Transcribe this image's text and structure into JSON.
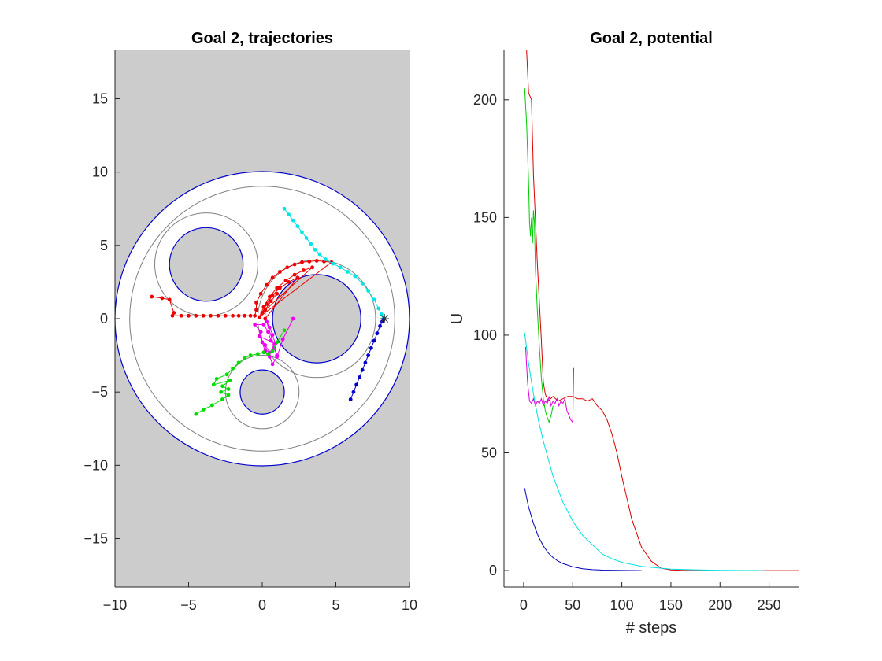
{
  "figure": {
    "left_title": "Goal 2, trajectories",
    "right_title": "Goal 2, potential"
  },
  "chart_data": [
    {
      "type": "scatter",
      "title": "Goal 2, trajectories",
      "xlabel": "",
      "ylabel": "",
      "xlim": [
        -10,
        10
      ],
      "ylim": [
        -18.3,
        18.3
      ],
      "xticks": [
        -10,
        -5,
        0,
        5,
        10
      ],
      "yticks": [
        -15,
        -10,
        -5,
        0,
        5,
        10,
        15
      ],
      "grid": false,
      "colors": {
        "background": "#cccccc",
        "free_space": "#ffffff",
        "obstacle_edge": "#0000cc",
        "inflated_edge": "#808080"
      },
      "workspace": {
        "center": [
          0,
          0
        ],
        "radius": 10,
        "inner_ring": 9
      },
      "obstacles": [
        {
          "center": [
            -3.8,
            3.7
          ],
          "radius": 2.5,
          "ring": 3.5
        },
        {
          "center": [
            3.7,
            0
          ],
          "radius": 3.0,
          "ring": 4.0
        },
        {
          "center": [
            0,
            -5.0
          ],
          "radius": 1.5,
          "ring": 2.5
        }
      ],
      "goal": [
        8.3,
        0
      ],
      "series": [
        {
          "name": "red",
          "color": "#ee0000",
          "points": [
            [
              -7.5,
              1.5
            ],
            [
              -6.8,
              1.4
            ],
            [
              -6.3,
              1.3
            ],
            [
              -6.0,
              0.4
            ],
            [
              -6.1,
              0.2
            ],
            [
              -5.5,
              0.2
            ],
            [
              -5.0,
              0.2
            ],
            [
              -4.5,
              0.2
            ],
            [
              -4.0,
              0.2
            ],
            [
              -3.5,
              0.2
            ],
            [
              -3.0,
              0.2
            ],
            [
              -2.5,
              0.2
            ],
            [
              -2.0,
              0.2
            ],
            [
              -1.6,
              0.2
            ],
            [
              -1.2,
              0.2
            ],
            [
              -0.8,
              0.2
            ],
            [
              -0.5,
              0.2
            ],
            [
              -0.4,
              0.6
            ],
            [
              -0.4,
              1.1
            ],
            [
              -0.1,
              1.7
            ],
            [
              0.3,
              2.3
            ],
            [
              0.7,
              2.8
            ],
            [
              1.2,
              3.2
            ],
            [
              1.7,
              3.5
            ],
            [
              2.2,
              3.7
            ],
            [
              2.7,
              3.85
            ],
            [
              3.2,
              3.9
            ],
            [
              3.7,
              3.95
            ],
            [
              4.2,
              3.9
            ],
            [
              4.7,
              3.85
            ],
            [
              -0.2,
              0.1
            ],
            [
              0.1,
              0.8
            ],
            [
              0.5,
              1.5
            ],
            [
              1.0,
              2.1
            ],
            [
              1.6,
              2.6
            ],
            [
              2.2,
              3.0
            ],
            [
              2.8,
              3.3
            ],
            [
              3.4,
              3.5
            ],
            [
              0.0,
              0.4
            ],
            [
              0.3,
              1.0
            ],
            [
              0.7,
              1.6
            ],
            [
              1.2,
              2.1
            ],
            [
              1.8,
              2.5
            ],
            [
              2.4,
              2.8
            ],
            [
              0.2,
              0.0
            ],
            [
              0.2,
              0.6
            ],
            [
              0.6,
              1.2
            ],
            [
              1.0,
              1.7
            ]
          ]
        },
        {
          "name": "cyan",
          "color": "#00e5e5",
          "points": [
            [
              1.5,
              7.5
            ],
            [
              1.8,
              7.1
            ],
            [
              2.1,
              6.7
            ],
            [
              2.4,
              6.3
            ],
            [
              2.7,
              5.9
            ],
            [
              3.0,
              5.5
            ],
            [
              3.3,
              5.1
            ],
            [
              3.6,
              4.7
            ],
            [
              3.9,
              4.4
            ],
            [
              4.3,
              4.05
            ],
            [
              4.8,
              3.75
            ],
            [
              5.3,
              3.5
            ],
            [
              5.8,
              3.2
            ],
            [
              6.3,
              2.9
            ],
            [
              6.8,
              2.4
            ],
            [
              7.2,
              1.9
            ],
            [
              7.6,
              1.3
            ],
            [
              7.9,
              0.7
            ],
            [
              8.1,
              0.3
            ],
            [
              8.25,
              0.05
            ]
          ]
        },
        {
          "name": "blue",
          "color": "#0000cc",
          "points": [
            [
              6.0,
              -5.5
            ],
            [
              6.2,
              -5.0
            ],
            [
              6.4,
              -4.5
            ],
            [
              6.6,
              -4.0
            ],
            [
              6.8,
              -3.5
            ],
            [
              7.0,
              -3.0
            ],
            [
              7.2,
              -2.5
            ],
            [
              7.4,
              -2.0
            ],
            [
              7.6,
              -1.5
            ],
            [
              7.8,
              -1.0
            ],
            [
              8.0,
              -0.5
            ],
            [
              8.15,
              -0.2
            ],
            [
              8.25,
              -0.05
            ]
          ]
        },
        {
          "name": "magenta",
          "color": "#ee00ee",
          "points": [
            [
              2.1,
              0.0
            ],
            [
              1.4,
              -1.4
            ],
            [
              1.0,
              -2.6
            ],
            [
              0.7,
              -3.1
            ],
            [
              0.5,
              -2.6
            ],
            [
              0.2,
              -2.2
            ],
            [
              0.0,
              -1.6
            ],
            [
              -0.1,
              -0.9
            ],
            [
              -0.5,
              -0.4
            ],
            [
              0.1,
              -0.4
            ],
            [
              0.4,
              -0.9
            ],
            [
              0.6,
              -1.5
            ],
            [
              0.8,
              -2.0
            ],
            [
              1.0,
              -2.5
            ],
            [
              0.3,
              -0.2
            ],
            [
              0.5,
              -0.6
            ],
            [
              0.7,
              -1.1
            ],
            [
              0.9,
              -1.7
            ],
            [
              -0.2,
              -1.2
            ],
            [
              0.2,
              -1.8
            ],
            [
              0.5,
              -2.3
            ]
          ]
        },
        {
          "name": "green",
          "color": "#00dd00",
          "points": [
            [
              -4.5,
              -6.5
            ],
            [
              -4.0,
              -6.2
            ],
            [
              -3.4,
              -5.9
            ],
            [
              -2.7,
              -5.5
            ],
            [
              -2.3,
              -5.2
            ],
            [
              -2.8,
              -5.0
            ],
            [
              -2.3,
              -4.8
            ],
            [
              -2.7,
              -4.6
            ],
            [
              -2.2,
              -4.2
            ],
            [
              -3.3,
              -4.5
            ],
            [
              -3.1,
              -4.1
            ],
            [
              -2.4,
              -3.8
            ],
            [
              -2.0,
              -3.4
            ],
            [
              -1.6,
              -3.0
            ],
            [
              -1.2,
              -2.7
            ],
            [
              -0.8,
              -2.5
            ],
            [
              -0.3,
              -2.4
            ],
            [
              0.1,
              -2.3
            ],
            [
              0.4,
              -2.4
            ],
            [
              0.7,
              -2.2
            ],
            [
              1.0,
              -1.6
            ],
            [
              1.5,
              -0.8
            ]
          ]
        }
      ]
    },
    {
      "type": "line",
      "title": "Goal 2, potential",
      "xlabel": "# steps",
      "ylabel": "U",
      "xlim": [
        -20,
        280
      ],
      "ylim": [
        -7,
        221
      ],
      "xticks": [
        0,
        50,
        100,
        150,
        200,
        250
      ],
      "yticks": [
        0,
        50,
        100,
        150,
        200
      ],
      "grid": false,
      "series": [
        {
          "name": "red",
          "color": "#dd0000",
          "x": [
            3,
            5,
            8,
            10,
            14,
            18,
            20,
            22,
            25,
            30,
            35,
            40,
            45,
            50,
            55,
            60,
            65,
            70,
            75,
            80,
            85,
            90,
            95,
            100,
            110,
            120,
            130,
            140,
            150,
            170,
            200,
            240,
            280
          ],
          "y": [
            221,
            203,
            200,
            168,
            130,
            98,
            80,
            75,
            72,
            74,
            72,
            73,
            74,
            74,
            73,
            73,
            72,
            73,
            70,
            68,
            64,
            58,
            50,
            40,
            22,
            10,
            4,
            1,
            0.3,
            0,
            0,
            0,
            0
          ]
        },
        {
          "name": "green",
          "color": "#00cc00",
          "x": [
            1,
            3,
            5,
            6,
            7,
            8,
            9,
            10,
            11,
            12,
            14,
            16,
            18,
            20,
            22,
            24,
            26,
            28,
            30
          ],
          "y": [
            205,
            190,
            165,
            148,
            142,
            150,
            139,
            153,
            148,
            128,
            110,
            95,
            82,
            73,
            68,
            65,
            63,
            66,
            70
          ]
        },
        {
          "name": "magenta",
          "color": "#dd00dd",
          "x": [
            2,
            4,
            6,
            8,
            10,
            12,
            14,
            16,
            18,
            20,
            22,
            24,
            26,
            28,
            30,
            32,
            34,
            36,
            38,
            40,
            42,
            44,
            46,
            48,
            50,
            51
          ],
          "y": [
            95,
            80,
            72,
            71,
            73,
            70,
            72,
            71,
            73,
            70,
            72,
            71,
            74,
            70,
            72,
            71,
            73,
            70,
            72,
            71,
            73,
            68,
            66,
            64,
            63,
            86
          ]
        },
        {
          "name": "cyan",
          "color": "#00e0e0",
          "x": [
            1,
            5,
            10,
            15,
            20,
            30,
            40,
            50,
            60,
            70,
            80,
            90,
            100,
            120,
            150,
            200,
            245
          ],
          "y": [
            101,
            88,
            75,
            64,
            55,
            40,
            29,
            21,
            15,
            11,
            7,
            5,
            3.5,
            1.8,
            0.6,
            0.1,
            0
          ]
        },
        {
          "name": "blue",
          "color": "#0000bb",
          "x": [
            1,
            5,
            10,
            15,
            20,
            25,
            30,
            35,
            40,
            50,
            60,
            70,
            80,
            100,
            120
          ],
          "y": [
            35,
            27,
            20,
            14.5,
            10.5,
            7.5,
            5.5,
            4,
            3,
            1.6,
            0.8,
            0.4,
            0.2,
            0.05,
            0
          ]
        }
      ]
    }
  ]
}
